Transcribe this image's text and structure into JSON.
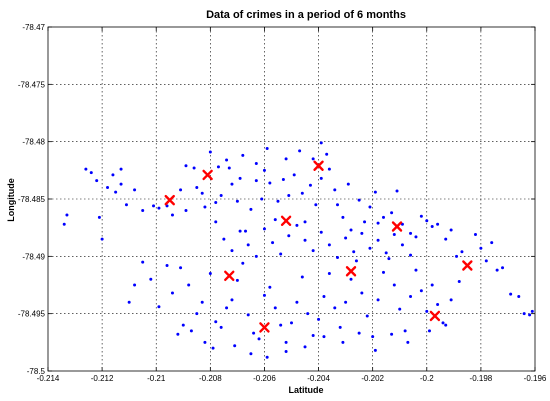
{
  "chart_data": {
    "type": "scatter",
    "title": "Data of crimes in a period of 6 months",
    "xlabel": "Latitude",
    "ylabel": "Longitude",
    "xlim": [
      -0.214,
      -0.196
    ],
    "ylim": [
      -78.5,
      -78.47
    ],
    "x_ticks": [
      -0.214,
      -0.212,
      -0.21,
      -0.208,
      -0.206,
      -0.204,
      -0.202,
      -0.2,
      -0.198,
      -0.196
    ],
    "y_ticks": [
      -78.47,
      -78.475,
      -78.48,
      -78.485,
      -78.49,
      -78.495,
      -78.5
    ],
    "x_tick_labels": [
      "-0.214",
      "-0.212",
      "-0.21",
      "-0.208",
      "-0.206",
      "-0.204",
      "-0.202",
      "-0.2",
      "-0.198",
      "-0.196"
    ],
    "y_tick_labels": [
      "-78.47",
      "-78.475",
      "-78.48",
      "-78.485",
      "-78.49",
      "-78.495",
      "-78.5"
    ],
    "grid": true,
    "colors": {
      "points": "#0000ff",
      "centers": "#ff0000"
    },
    "series": [
      {
        "marker": "dot",
        "points": [
          [
            -0.2134,
            -78.4872
          ],
          [
            -0.2133,
            -78.4864
          ],
          [
            -0.2126,
            -78.4824
          ],
          [
            -0.2124,
            -78.4827
          ],
          [
            -0.2122,
            -78.4834
          ],
          [
            -0.2121,
            -78.4866
          ],
          [
            -0.212,
            -78.4885
          ],
          [
            -0.2118,
            -78.484
          ],
          [
            -0.2116,
            -78.4829
          ],
          [
            -0.2115,
            -78.4844
          ],
          [
            -0.2113,
            -78.4837
          ],
          [
            -0.2113,
            -78.4824
          ],
          [
            -0.2111,
            -78.4855
          ],
          [
            -0.2108,
            -78.4842
          ],
          [
            -0.2105,
            -78.486
          ],
          [
            -0.2101,
            -78.4856
          ],
          [
            -0.2099,
            -78.4858
          ],
          [
            -0.2096,
            -78.4856
          ],
          [
            -0.2094,
            -78.4864
          ],
          [
            -0.2091,
            -78.4842
          ],
          [
            -0.2089,
            -78.4821
          ],
          [
            -0.2089,
            -78.486
          ],
          [
            -0.2086,
            -78.4823
          ],
          [
            -0.2085,
            -78.484
          ],
          [
            -0.2083,
            -78.4845
          ],
          [
            -0.2082,
            -78.4857
          ],
          [
            -0.208,
            -78.4809
          ],
          [
            -0.2078,
            -78.4853
          ],
          [
            -0.2077,
            -78.4822
          ],
          [
            -0.2076,
            -78.4847
          ],
          [
            -0.2074,
            -78.4816
          ],
          [
            -0.2073,
            -78.4823
          ],
          [
            -0.2072,
            -78.4837
          ],
          [
            -0.207,
            -78.4852
          ],
          [
            -0.2069,
            -78.4832
          ],
          [
            -0.2068,
            -78.4812
          ],
          [
            -0.2067,
            -78.4878
          ],
          [
            -0.2065,
            -78.4859
          ],
          [
            -0.2063,
            -78.4819
          ],
          [
            -0.2063,
            -78.4834
          ],
          [
            -0.2061,
            -78.485
          ],
          [
            -0.206,
            -78.4825
          ],
          [
            -0.2059,
            -78.4806
          ],
          [
            -0.2058,
            -78.4836
          ],
          [
            -0.2056,
            -78.4868
          ],
          [
            -0.2055,
            -78.4852
          ],
          [
            -0.2053,
            -78.4833
          ],
          [
            -0.2052,
            -78.4815
          ],
          [
            -0.2051,
            -78.4847
          ],
          [
            -0.2049,
            -78.4829
          ],
          [
            -0.2047,
            -78.4808
          ],
          [
            -0.2046,
            -78.4845
          ],
          [
            -0.2045,
            -78.487
          ],
          [
            -0.2043,
            -78.4838
          ],
          [
            -0.2042,
            -78.4815
          ],
          [
            -0.2041,
            -78.4855
          ],
          [
            -0.2039,
            -78.4832
          ],
          [
            -0.2039,
            -78.4801
          ],
          [
            -0.2037,
            -78.4811
          ],
          [
            -0.2036,
            -78.4824
          ],
          [
            -0.2034,
            -78.4842
          ],
          [
            -0.2033,
            -78.4855
          ],
          [
            -0.2031,
            -78.4866
          ],
          [
            -0.2029,
            -78.4837
          ],
          [
            -0.2028,
            -78.4877
          ],
          [
            -0.2025,
            -78.4851
          ],
          [
            -0.2023,
            -78.487
          ],
          [
            -0.2021,
            -78.4857
          ],
          [
            -0.2019,
            -78.4844
          ],
          [
            -0.2018,
            -78.4871
          ],
          [
            -0.2016,
            -78.4866
          ],
          [
            -0.2013,
            -78.4862
          ],
          [
            -0.2011,
            -78.4843
          ],
          [
            -0.2009,
            -78.4872
          ],
          [
            -0.2006,
            -78.488
          ],
          [
            -0.2004,
            -78.4883
          ],
          [
            -0.2002,
            -78.4865
          ],
          [
            -0.2,
            -78.4869
          ],
          [
            -0.1998,
            -78.4874
          ],
          [
            -0.1996,
            -78.4872
          ],
          [
            -0.1993,
            -78.4885
          ],
          [
            -0.1991,
            -78.4877
          ],
          [
            -0.1989,
            -78.49
          ],
          [
            -0.1987,
            -78.4896
          ],
          [
            -0.1982,
            -78.4881
          ],
          [
            -0.198,
            -78.4893
          ],
          [
            -0.1978,
            -78.4904
          ],
          [
            -0.1976,
            -78.4888
          ],
          [
            -0.1974,
            -78.4912
          ],
          [
            -0.1972,
            -78.491
          ],
          [
            -0.1969,
            -78.4933
          ],
          [
            -0.1966,
            -78.4935
          ],
          [
            -0.1964,
            -78.495
          ],
          [
            -0.1961,
            -78.4948
          ],
          [
            -0.1962,
            -78.4951
          ],
          [
            -0.2105,
            -78.4905
          ],
          [
            -0.2102,
            -78.492
          ],
          [
            -0.2099,
            -78.4944
          ],
          [
            -0.2096,
            -78.4908
          ],
          [
            -0.2094,
            -78.4932
          ],
          [
            -0.2091,
            -78.491
          ],
          [
            -0.2088,
            -78.4925
          ],
          [
            -0.2085,
            -78.495
          ],
          [
            -0.2083,
            -78.494
          ],
          [
            -0.208,
            -78.4915
          ],
          [
            -0.2078,
            -78.4957
          ],
          [
            -0.2076,
            -78.4962
          ],
          [
            -0.2074,
            -78.4945
          ],
          [
            -0.2072,
            -78.4938
          ],
          [
            -0.207,
            -78.4921
          ],
          [
            -0.2068,
            -78.4906
          ],
          [
            -0.2066,
            -78.4951
          ],
          [
            -0.2064,
            -78.4967
          ],
          [
            -0.2062,
            -78.4972
          ],
          [
            -0.206,
            -78.4934
          ],
          [
            -0.2058,
            -78.4927
          ],
          [
            -0.2056,
            -78.4945
          ],
          [
            -0.2054,
            -78.496
          ],
          [
            -0.2052,
            -78.4975
          ],
          [
            -0.205,
            -78.4958
          ],
          [
            -0.2048,
            -78.494
          ],
          [
            -0.2046,
            -78.4918
          ],
          [
            -0.2044,
            -78.495
          ],
          [
            -0.2042,
            -78.4969
          ],
          [
            -0.204,
            -78.4955
          ],
          [
            -0.2038,
            -78.4935
          ],
          [
            -0.2036,
            -78.4915
          ],
          [
            -0.2034,
            -78.4945
          ],
          [
            -0.2032,
            -78.4962
          ],
          [
            -0.203,
            -78.494
          ],
          [
            -0.2028,
            -78.492
          ],
          [
            -0.2026,
            -78.4904
          ],
          [
            -0.2024,
            -78.4932
          ],
          [
            -0.2022,
            -78.4952
          ],
          [
            -0.202,
            -78.497
          ],
          [
            -0.2018,
            -78.4938
          ],
          [
            -0.2016,
            -78.4914
          ],
          [
            -0.2014,
            -78.4902
          ],
          [
            -0.2012,
            -78.4925
          ],
          [
            -0.201,
            -78.4946
          ],
          [
            -0.2008,
            -78.4965
          ],
          [
            -0.2006,
            -78.4935
          ],
          [
            -0.2004,
            -78.4912
          ],
          [
            -0.2002,
            -78.493
          ],
          [
            -0.2,
            -78.4948
          ],
          [
            -0.1998,
            -78.4925
          ],
          [
            -0.1996,
            -78.4942
          ],
          [
            -0.1993,
            -78.496
          ],
          [
            -0.1991,
            -78.4938
          ],
          [
            -0.1988,
            -78.4922
          ],
          [
            -0.2078,
            -78.487
          ],
          [
            -0.2075,
            -78.4885
          ],
          [
            -0.2072,
            -78.4895
          ],
          [
            -0.2069,
            -78.4878
          ],
          [
            -0.2066,
            -78.489
          ],
          [
            -0.2063,
            -78.49
          ],
          [
            -0.206,
            -78.4876
          ],
          [
            -0.2057,
            -78.4888
          ],
          [
            -0.2054,
            -78.4898
          ],
          [
            -0.2051,
            -78.4882
          ],
          [
            -0.2048,
            -78.4873
          ],
          [
            -0.2045,
            -78.4886
          ],
          [
            -0.2042,
            -78.4895
          ],
          [
            -0.2039,
            -78.4879
          ],
          [
            -0.2036,
            -78.489
          ],
          [
            -0.2033,
            -78.4901
          ],
          [
            -0.203,
            -78.4884
          ],
          [
            -0.2027,
            -78.4896
          ],
          [
            -0.2024,
            -78.488
          ],
          [
            -0.2021,
            -78.4893
          ],
          [
            -0.2018,
            -78.4886
          ],
          [
            -0.2015,
            -78.4897
          ],
          [
            -0.2012,
            -78.4881
          ],
          [
            -0.2009,
            -78.489
          ],
          [
            -0.2006,
            -78.4899
          ],
          [
            -0.211,
            -78.494
          ],
          [
            -0.2108,
            -78.4925
          ],
          [
            -0.209,
            -78.496
          ],
          [
            -0.2092,
            -78.4968
          ],
          [
            -0.2087,
            -78.4965
          ],
          [
            -0.2082,
            -78.4975
          ],
          [
            -0.2079,
            -78.498
          ],
          [
            -0.2071,
            -78.4978
          ],
          [
            -0.2065,
            -78.4985
          ],
          [
            -0.2059,
            -78.4988
          ],
          [
            -0.2052,
            -78.4983
          ],
          [
            -0.2045,
            -78.4979
          ],
          [
            -0.2038,
            -78.497
          ],
          [
            -0.2031,
            -78.4975
          ],
          [
            -0.2025,
            -78.4967
          ],
          [
            -0.2019,
            -78.4982
          ],
          [
            -0.2013,
            -78.4968
          ],
          [
            -0.2007,
            -78.4975
          ],
          [
            -0.1999,
            -78.4965
          ],
          [
            -0.1994,
            -78.4958
          ]
        ]
      },
      {
        "marker": "x",
        "points": [
          [
            -0.2095,
            -78.4851
          ],
          [
            -0.2081,
            -78.4829
          ],
          [
            -0.2073,
            -78.4917
          ],
          [
            -0.206,
            -78.4962
          ],
          [
            -0.2052,
            -78.4869
          ],
          [
            -0.204,
            -78.4821
          ],
          [
            -0.2028,
            -78.4913
          ],
          [
            -0.2011,
            -78.4874
          ],
          [
            -0.1997,
            -78.4952
          ],
          [
            -0.1985,
            -78.4908
          ]
        ]
      }
    ]
  }
}
